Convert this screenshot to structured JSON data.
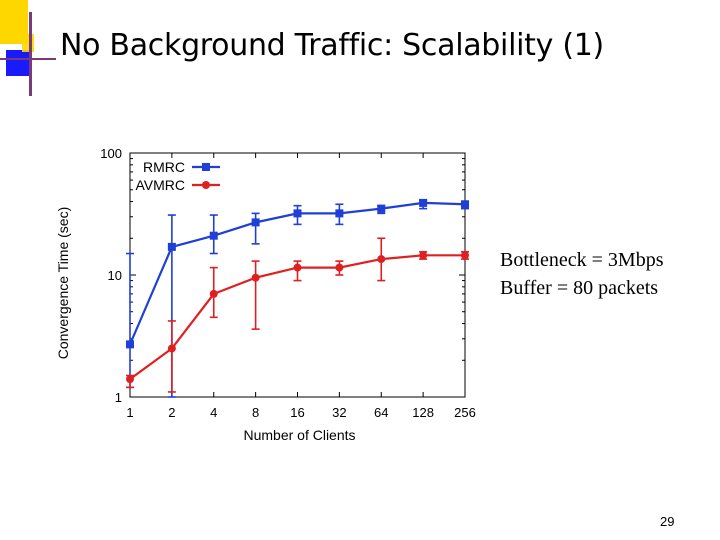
{
  "slide": {
    "title": "No Background Traffic: Scalability (1)",
    "notes": [
      "Bottleneck = 3Mbps",
      "Buffer = 80 packets"
    ],
    "page_number": "29"
  },
  "colors": {
    "rmrc": "#1f3fd6",
    "avmrc": "#e02020",
    "accent_yellow": "#ffd700",
    "accent_blue": "#1a1aff"
  },
  "chart_data": {
    "type": "line",
    "x": [
      1,
      2,
      4,
      8,
      16,
      32,
      64,
      128,
      256
    ],
    "x_tick_labels": [
      "1",
      "2",
      "4",
      "8",
      "16",
      "32",
      "64",
      "128",
      "256"
    ],
    "xlabel": "Number of Clients",
    "ylabel": "Convergence Time (sec)",
    "yscale": "log",
    "xscale": "log2",
    "ylim": [
      1,
      100
    ],
    "y_tick_labels": [
      "1",
      "10",
      "100"
    ],
    "legend_position": "top-left",
    "series": [
      {
        "name": "RMRC",
        "color": "#1f3fd6",
        "marker": "square",
        "values": [
          2.7,
          17.0,
          21.0,
          27.0,
          32.0,
          32.0,
          35.0,
          39.0,
          38.0
        ],
        "err_low": [
          1.2,
          1.0,
          15.0,
          18.0,
          26.0,
          26.0,
          32.0,
          35.0,
          35.0
        ],
        "err_high": [
          15.0,
          31.0,
          31.0,
          32.0,
          37.0,
          38.0,
          37.0,
          41.0,
          40.0
        ]
      },
      {
        "name": "AVMRC",
        "color": "#e02020",
        "marker": "circle",
        "values": [
          1.4,
          2.5,
          7.0,
          9.5,
          11.5,
          11.5,
          13.5,
          14.5,
          14.5
        ],
        "err_low": [
          1.2,
          1.1,
          4.5,
          3.6,
          9.0,
          10.0,
          9.0,
          13.5,
          13.5
        ],
        "err_high": [
          1.5,
          4.2,
          11.5,
          13.0,
          13.0,
          13.0,
          20.0,
          15.5,
          15.5
        ]
      }
    ]
  }
}
